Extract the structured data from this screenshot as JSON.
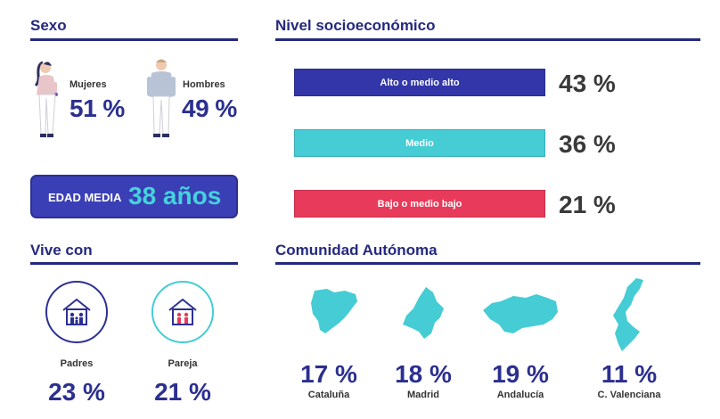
{
  "sexo": {
    "title": "Sexo",
    "mujeres": {
      "label": "Mujeres",
      "pct": "51 %"
    },
    "hombres": {
      "label": "Hombres",
      "pct": "49 %"
    }
  },
  "edad": {
    "label": "EDAD MEDIA",
    "value": "38 años"
  },
  "nivel": {
    "title": "Nivel socioeconómico",
    "items": [
      {
        "label": "Alto o medio alto",
        "pct": "43 %",
        "value": 43,
        "color": "#3236a8"
      },
      {
        "label": "Medio",
        "pct": "36 %",
        "value": 36,
        "color": "#45ccd4"
      },
      {
        "label": "Bajo o medio bajo",
        "pct": "21 %",
        "value": 21,
        "color": "#e83a5a"
      }
    ]
  },
  "vive": {
    "title": "Vive con",
    "items": [
      {
        "label": "Padres",
        "pct": "23 %",
        "value": 23,
        "color": "#2c3093",
        "icon": "house-icon"
      },
      {
        "label": "Pareja",
        "pct": "21 %",
        "value": 21,
        "color": "#45ccd4",
        "icon": "house-icon"
      }
    ]
  },
  "comunidad": {
    "title": "Comunidad Autónoma",
    "items": [
      {
        "label": "Cataluña",
        "pct": "17 %",
        "value": 17
      },
      {
        "label": "Madrid",
        "pct": "18 %",
        "value": 18
      },
      {
        "label": "Andalucía",
        "pct": "19 %",
        "value": 19
      },
      {
        "label": "C. Valenciana",
        "pct": "11 %",
        "value": 11
      }
    ],
    "map_color": "#45ccd4"
  },
  "chart_data": [
    {
      "type": "bar",
      "title": "Nivel socioeconómico",
      "categories": [
        "Alto o medio alto",
        "Medio",
        "Bajo o medio bajo"
      ],
      "values": [
        43,
        36,
        21
      ]
    },
    {
      "type": "table",
      "title": "Sexo",
      "categories": [
        "Mujeres",
        "Hombres"
      ],
      "values": [
        51,
        49
      ]
    },
    {
      "type": "table",
      "title": "Vive con",
      "categories": [
        "Padres",
        "Pareja"
      ],
      "values": [
        23,
        21
      ]
    },
    {
      "type": "table",
      "title": "Comunidad Autónoma",
      "categories": [
        "Cataluña",
        "Madrid",
        "Andalucía",
        "C. Valenciana"
      ],
      "values": [
        17,
        18,
        19,
        11
      ]
    }
  ]
}
